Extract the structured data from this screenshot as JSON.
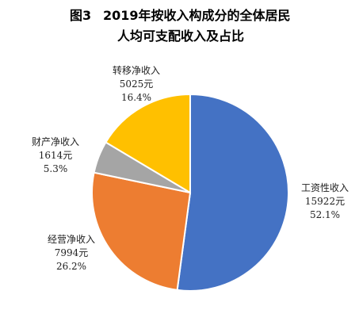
{
  "title": {
    "fig_label": "图3",
    "line1": "2019年按收入构成分的全体居民",
    "line2": "人均可支配收入及占比"
  },
  "chart_data": {
    "type": "pie",
    "title": "2019年按收入构成分的全体居民人均可支配收入及占比",
    "unit": "元",
    "start_angle_deg": 0,
    "direction": "clockwise",
    "legend": "none",
    "slices": [
      {
        "name": "工资性收入",
        "value": 15922,
        "value_label": "15922元",
        "percent": 52.1,
        "percent_label": "52.1%",
        "color": "#4472C4"
      },
      {
        "name": "经营净收入",
        "value": 7994,
        "value_label": "7994元",
        "percent": 26.2,
        "percent_label": "26.2%",
        "color": "#ED7D31"
      },
      {
        "name": "财产净收入",
        "value": 1614,
        "value_label": "1614元",
        "percent": 5.3,
        "percent_label": "5.3%",
        "color": "#A5A5A5"
      },
      {
        "name": "转移净收入",
        "value": 5025,
        "value_label": "5025元",
        "percent": 16.4,
        "percent_label": "16.4%",
        "color": "#FFC000"
      }
    ]
  }
}
